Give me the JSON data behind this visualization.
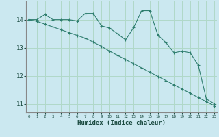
{
  "title": "",
  "xlabel": "Humidex (Indice chaleur)",
  "background_color": "#cbe8f0",
  "grid_color": "#b0d8c8",
  "line_color": "#2e7d6e",
  "x_values": [
    0,
    1,
    2,
    3,
    4,
    5,
    6,
    7,
    8,
    9,
    10,
    11,
    12,
    13,
    14,
    15,
    16,
    17,
    18,
    19,
    20,
    21,
    22,
    23
  ],
  "y_line1": [
    14.0,
    14.0,
    14.18,
    14.0,
    14.0,
    14.0,
    13.95,
    14.22,
    14.22,
    13.78,
    13.7,
    13.5,
    13.28,
    13.72,
    14.32,
    14.32,
    13.45,
    13.18,
    12.82,
    12.88,
    12.82,
    12.38,
    11.18,
    11.0
  ],
  "y_line2": [
    14.0,
    13.94,
    13.84,
    13.74,
    13.64,
    13.54,
    13.44,
    13.34,
    13.2,
    13.05,
    12.88,
    12.73,
    12.58,
    12.43,
    12.28,
    12.13,
    11.98,
    11.83,
    11.68,
    11.53,
    11.38,
    11.23,
    11.08,
    10.93
  ],
  "yticks": [
    11,
    12,
    13,
    14
  ],
  "xticks": [
    0,
    1,
    2,
    3,
    4,
    5,
    6,
    7,
    8,
    9,
    10,
    11,
    12,
    13,
    14,
    15,
    16,
    17,
    18,
    19,
    20,
    21,
    22,
    23
  ],
  "ylim": [
    10.7,
    14.65
  ],
  "xlim": [
    -0.3,
    23.3
  ]
}
